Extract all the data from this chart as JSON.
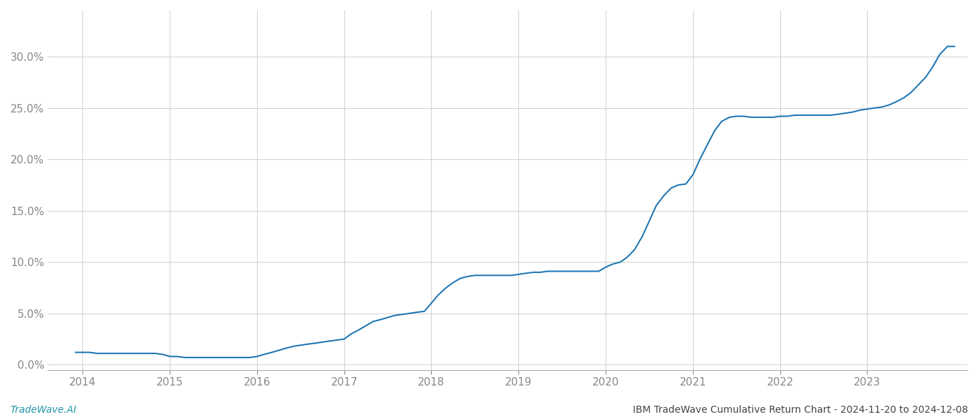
{
  "title": "IBM TradeWave Cumulative Return Chart - 2024-11-20 to 2024-12-08",
  "watermark": "TradeWave.AI",
  "line_color": "#1f77b4",
  "background_color": "#ffffff",
  "grid_color": "#cccccc",
  "x_values": [
    2013.92,
    2014.0,
    2014.08,
    2014.17,
    2014.25,
    2014.33,
    2014.42,
    2014.5,
    2014.58,
    2014.67,
    2014.75,
    2014.83,
    2014.92,
    2015.0,
    2015.08,
    2015.17,
    2015.25,
    2015.33,
    2015.42,
    2015.5,
    2015.58,
    2015.67,
    2015.75,
    2015.83,
    2015.92,
    2016.0,
    2016.08,
    2016.17,
    2016.25,
    2016.33,
    2016.42,
    2016.5,
    2016.58,
    2016.67,
    2016.75,
    2016.83,
    2016.92,
    2017.0,
    2017.08,
    2017.17,
    2017.25,
    2017.33,
    2017.42,
    2017.5,
    2017.58,
    2017.67,
    2017.75,
    2017.83,
    2017.92,
    2018.0,
    2018.08,
    2018.17,
    2018.25,
    2018.33,
    2018.42,
    2018.5,
    2018.58,
    2018.67,
    2018.75,
    2018.83,
    2018.92,
    2019.0,
    2019.08,
    2019.17,
    2019.25,
    2019.33,
    2019.42,
    2019.5,
    2019.58,
    2019.67,
    2019.75,
    2019.83,
    2019.92,
    2020.0,
    2020.08,
    2020.17,
    2020.25,
    2020.33,
    2020.42,
    2020.5,
    2020.58,
    2020.67,
    2020.75,
    2020.83,
    2020.92,
    2021.0,
    2021.08,
    2021.17,
    2021.25,
    2021.33,
    2021.42,
    2021.5,
    2021.58,
    2021.67,
    2021.75,
    2021.83,
    2021.92,
    2022.0,
    2022.08,
    2022.17,
    2022.25,
    2022.33,
    2022.42,
    2022.5,
    2022.58,
    2022.67,
    2022.75,
    2022.83,
    2022.92,
    2023.0,
    2023.08,
    2023.17,
    2023.25,
    2023.33,
    2023.42,
    2023.5,
    2023.58,
    2023.67,
    2023.75,
    2023.83,
    2023.92,
    2024.0
  ],
  "y_values": [
    0.012,
    0.012,
    0.012,
    0.011,
    0.011,
    0.011,
    0.011,
    0.011,
    0.011,
    0.011,
    0.011,
    0.011,
    0.01,
    0.008,
    0.008,
    0.007,
    0.007,
    0.007,
    0.007,
    0.007,
    0.007,
    0.007,
    0.007,
    0.007,
    0.007,
    0.008,
    0.01,
    0.012,
    0.014,
    0.016,
    0.018,
    0.019,
    0.02,
    0.021,
    0.022,
    0.023,
    0.024,
    0.025,
    0.03,
    0.034,
    0.038,
    0.042,
    0.044,
    0.046,
    0.048,
    0.049,
    0.05,
    0.051,
    0.052,
    0.06,
    0.068,
    0.075,
    0.08,
    0.084,
    0.086,
    0.087,
    0.087,
    0.087,
    0.087,
    0.087,
    0.087,
    0.088,
    0.089,
    0.09,
    0.09,
    0.091,
    0.091,
    0.091,
    0.091,
    0.091,
    0.091,
    0.091,
    0.091,
    0.095,
    0.098,
    0.1,
    0.105,
    0.112,
    0.125,
    0.14,
    0.155,
    0.165,
    0.172,
    0.175,
    0.176,
    0.185,
    0.2,
    0.215,
    0.228,
    0.237,
    0.241,
    0.242,
    0.242,
    0.241,
    0.241,
    0.241,
    0.241,
    0.242,
    0.242,
    0.243,
    0.243,
    0.243,
    0.243,
    0.243,
    0.243,
    0.244,
    0.245,
    0.246,
    0.248,
    0.249,
    0.25,
    0.251,
    0.253,
    0.256,
    0.26,
    0.265,
    0.272,
    0.28,
    0.29,
    0.302,
    0.31,
    0.31
  ],
  "ylim": [
    -0.005,
    0.345
  ],
  "yticks": [
    0.0,
    0.05,
    0.1,
    0.15,
    0.2,
    0.25,
    0.3
  ],
  "xticks": [
    2014,
    2015,
    2016,
    2017,
    2018,
    2019,
    2020,
    2021,
    2022,
    2023
  ],
  "tick_color": "#888888",
  "tick_label_fontsize": 11,
  "footer_fontsize": 10,
  "line_width": 1.5,
  "watermark_color": "#2196a6",
  "footer_text_color": "#444444"
}
